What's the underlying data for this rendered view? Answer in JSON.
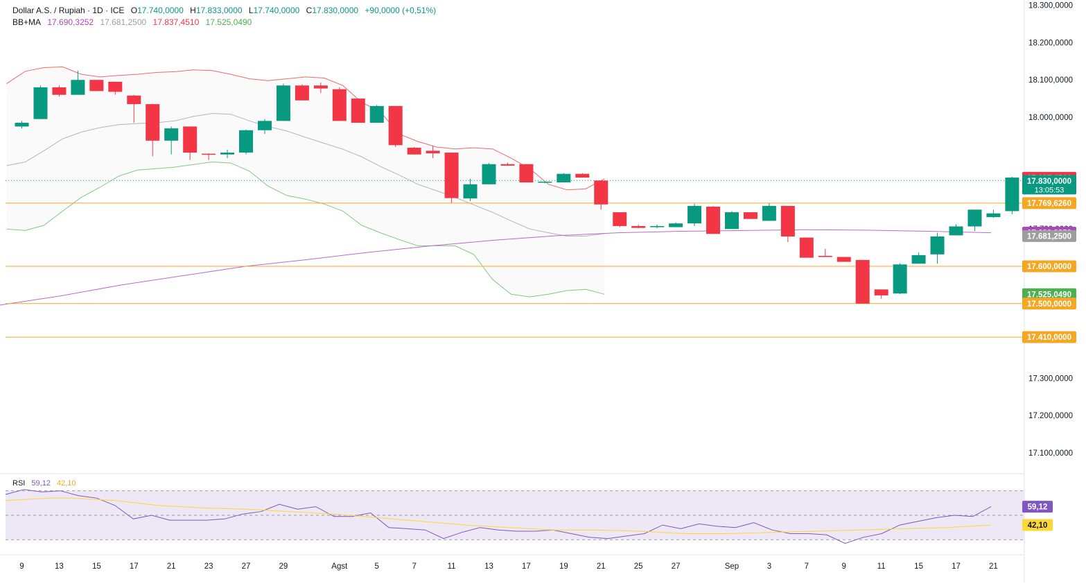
{
  "header": {
    "symbol": "Dollar A.S. / Rupiah · 1D · ICE",
    "o_label": "O",
    "o_value": "17.740,0000",
    "h_label": "H",
    "h_value": "17.833,0000",
    "l_label": "L",
    "l_value": "17.740,0000",
    "c_label": "C",
    "c_value": "17.830,0000",
    "change": "+90,0000 (+0,51%)"
  },
  "bb_legend": {
    "label": "BB+MA",
    "v1": "17.690,3252",
    "v2": "17.681,2500",
    "v3": "17.837,4510",
    "v4": "17.525,0490"
  },
  "rsi_legend": {
    "label": "RSI",
    "v1": "59,12",
    "v2": "42,10"
  },
  "colors": {
    "up": "#089981",
    "down": "#f23645",
    "bb_upper": "#f0696e",
    "bb_basis": "#b2b5be",
    "bb_lower": "#81c784",
    "ma": "#ba68c8",
    "hline": "#f5a623",
    "rsi": "#7e57c2",
    "rsi_ma": "#fdd835",
    "rsi_band": "#ede7f6"
  },
  "chart_data": {
    "type": "candlestick",
    "price_axis": {
      "ylim": [
        17055,
        18305
      ],
      "ticks": [
        17100000,
        17200000,
        17300000,
        17700000,
        18000000,
        18100000,
        18200000,
        18300000
      ],
      "tick_labels": [
        "17.100,0000",
        "17.200,0000",
        "17.300,0000",
        "17.700,0000",
        "18.000,0000",
        "18.100,0000",
        "18.200,0000",
        "18.300,0000"
      ]
    },
    "x_tick_labels": [
      {
        "i": 1,
        "label": "9"
      },
      {
        "i": 3,
        "label": "13"
      },
      {
        "i": 5,
        "label": "15"
      },
      {
        "i": 7,
        "label": "17"
      },
      {
        "i": 9,
        "label": "21"
      },
      {
        "i": 11,
        "label": "23"
      },
      {
        "i": 13,
        "label": "27"
      },
      {
        "i": 15,
        "label": "29"
      },
      {
        "i": 18,
        "label": "Agst"
      },
      {
        "i": 20,
        "label": "5"
      },
      {
        "i": 22,
        "label": "7"
      },
      {
        "i": 24,
        "label": "11"
      },
      {
        "i": 26,
        "label": "13"
      },
      {
        "i": 28,
        "label": "17"
      },
      {
        "i": 30,
        "label": "19"
      },
      {
        "i": 32,
        "label": "21"
      },
      {
        "i": 34,
        "label": "25"
      },
      {
        "i": 36,
        "label": "27"
      },
      {
        "i": 39,
        "label": "Sep"
      },
      {
        "i": 41,
        "label": "3"
      },
      {
        "i": 43,
        "label": "7"
      },
      {
        "i": 45,
        "label": "9"
      },
      {
        "i": 47,
        "label": "11"
      },
      {
        "i": 49,
        "label": "15"
      },
      {
        "i": 51,
        "label": "17"
      },
      {
        "i": 53,
        "label": "21"
      }
    ],
    "candles": [
      [
        17975,
        17985,
        17970,
        17990
      ],
      [
        17995,
        18080,
        17995,
        18085
      ],
      [
        18080,
        18060,
        18055,
        18085
      ],
      [
        18060,
        18100,
        18060,
        18125
      ],
      [
        18100,
        18070,
        18070,
        18100
      ],
      [
        18095,
        18068,
        18060,
        18095
      ],
      [
        18058,
        18035,
        17985,
        18060
      ],
      [
        18035,
        17937,
        17895,
        18035
      ],
      [
        17937,
        17970,
        17900,
        17975
      ],
      [
        17975,
        17905,
        17885,
        17975
      ],
      [
        17902,
        17900,
        17885,
        17903
      ],
      [
        17900,
        17905,
        17890,
        17913
      ],
      [
        17905,
        17965,
        17900,
        17967
      ],
      [
        17965,
        17990,
        17955,
        17995
      ],
      [
        17990,
        18085,
        17990,
        18090
      ],
      [
        18085,
        18045,
        18045,
        18088
      ],
      [
        18085,
        18077,
        18065,
        18093
      ],
      [
        18075,
        17990,
        17990,
        18080
      ],
      [
        18050,
        17985,
        17985,
        18050
      ],
      [
        17985,
        18030,
        17985,
        18033
      ],
      [
        18030,
        17925,
        17920,
        18030
      ],
      [
        17918,
        17900,
        17900,
        17920
      ],
      [
        17910,
        17903,
        17890,
        17923
      ],
      [
        17905,
        17783,
        17770,
        17905
      ],
      [
        17782,
        17820,
        17775,
        17835
      ],
      [
        17820,
        17874,
        17820,
        17877
      ],
      [
        17874,
        17870,
        17870,
        17878
      ],
      [
        17874,
        17825,
        17825,
        17874
      ],
      [
        17825,
        17827,
        17823,
        17828
      ],
      [
        17825,
        17848,
        17825,
        17850
      ],
      [
        17848,
        17838,
        17838,
        17850
      ],
      [
        17830,
        17766,
        17752,
        17830
      ],
      [
        17745,
        17708,
        17705,
        17745
      ],
      [
        17708,
        17703,
        17702,
        17712
      ],
      [
        17705,
        17708,
        17702,
        17712
      ],
      [
        17705,
        17715,
        17705,
        17718
      ],
      [
        17715,
        17762,
        17708,
        17768
      ],
      [
        17760,
        17687,
        17687,
        17762
      ],
      [
        17700,
        17745,
        17700,
        17748
      ],
      [
        17745,
        17727,
        17727,
        17745
      ],
      [
        17722,
        17762,
        17722,
        17770
      ],
      [
        17762,
        17680,
        17665,
        17762
      ],
      [
        17677,
        17623,
        17623,
        17677
      ],
      [
        17628,
        17625,
        17625,
        17647
      ],
      [
        17625,
        17612,
        17612,
        17625
      ],
      [
        17617,
        17500,
        17500,
        17617
      ],
      [
        17538,
        17522,
        17513,
        17538
      ],
      [
        17527,
        17605,
        17525,
        17608
      ],
      [
        17607,
        17630,
        17607,
        17637
      ],
      [
        17632,
        17680,
        17607,
        17690
      ],
      [
        17683,
        17707,
        17683,
        17713
      ],
      [
        17707,
        17752,
        17695,
        17752
      ],
      [
        17732,
        17742,
        17730,
        17752
      ],
      [
        17748,
        17838,
        17740,
        17840
      ]
    ],
    "bb_upper": [
      [
        0,
        18090
      ],
      [
        2,
        18123
      ],
      [
        4,
        18133
      ],
      [
        6,
        18135
      ],
      [
        8,
        18115
      ],
      [
        10,
        18108
      ],
      [
        12,
        18112
      ],
      [
        14,
        18115
      ],
      [
        16,
        18120
      ],
      [
        18,
        18122
      ],
      [
        20,
        18127
      ],
      [
        22,
        18125
      ],
      [
        24,
        18115
      ],
      [
        26,
        18103
      ],
      [
        28,
        18098
      ],
      [
        30,
        18103
      ],
      [
        32,
        18108
      ],
      [
        34,
        18105
      ],
      [
        36,
        18085
      ],
      [
        38,
        18040
      ],
      [
        40,
        18015
      ],
      [
        42,
        17955
      ],
      [
        44,
        17935
      ],
      [
        46,
        17920
      ],
      [
        48,
        17915
      ],
      [
        50,
        17918
      ],
      [
        52,
        17915
      ],
      [
        54,
        17890
      ],
      [
        56,
        17862
      ],
      [
        58,
        17820
      ],
      [
        60,
        17805
      ],
      [
        62,
        17808
      ],
      [
        64,
        17835
      ]
    ],
    "bb_basis": [
      [
        0,
        17870
      ],
      [
        2,
        17880
      ],
      [
        4,
        17910
      ],
      [
        6,
        17942
      ],
      [
        8,
        17960
      ],
      [
        10,
        17972
      ],
      [
        12,
        17980
      ],
      [
        14,
        17983
      ],
      [
        16,
        17985
      ],
      [
        18,
        17990
      ],
      [
        20,
        18002
      ],
      [
        22,
        18010
      ],
      [
        24,
        18008
      ],
      [
        26,
        17990
      ],
      [
        28,
        17975
      ],
      [
        30,
        17963
      ],
      [
        32,
        17946
      ],
      [
        34,
        17930
      ],
      [
        36,
        17914
      ],
      [
        38,
        17894
      ],
      [
        40,
        17868
      ],
      [
        42,
        17845
      ],
      [
        44,
        17820
      ],
      [
        46,
        17803
      ],
      [
        48,
        17785
      ],
      [
        50,
        17765
      ],
      [
        52,
        17745
      ],
      [
        54,
        17722
      ],
      [
        56,
        17700
      ],
      [
        58,
        17690
      ],
      [
        60,
        17681
      ],
      [
        62,
        17681
      ],
      [
        64,
        17688
      ]
    ],
    "bb_lower": [
      [
        0,
        17700
      ],
      [
        2,
        17696
      ],
      [
        4,
        17710
      ],
      [
        6,
        17748
      ],
      [
        8,
        17785
      ],
      [
        10,
        17812
      ],
      [
        12,
        17842
      ],
      [
        14,
        17858
      ],
      [
        16,
        17862
      ],
      [
        18,
        17866
      ],
      [
        20,
        17873
      ],
      [
        22,
        17880
      ],
      [
        24,
        17877
      ],
      [
        26,
        17855
      ],
      [
        28,
        17815
      ],
      [
        30,
        17790
      ],
      [
        32,
        17780
      ],
      [
        34,
        17767
      ],
      [
        36,
        17748
      ],
      [
        38,
        17710
      ],
      [
        40,
        17690
      ],
      [
        42,
        17672
      ],
      [
        44,
        17655
      ],
      [
        46,
        17655
      ],
      [
        48,
        17655
      ],
      [
        50,
        17632
      ],
      [
        52,
        17565
      ],
      [
        54,
        17525
      ],
      [
        56,
        17518
      ],
      [
        58,
        17525
      ],
      [
        60,
        17535
      ],
      [
        62,
        17538
      ],
      [
        64,
        17525
      ]
    ],
    "ma": [
      [
        0,
        17495
      ],
      [
        4,
        17520
      ],
      [
        8,
        17550
      ],
      [
        12,
        17575
      ],
      [
        16,
        17600
      ],
      [
        20,
        17618
      ],
      [
        24,
        17638
      ],
      [
        28,
        17655
      ],
      [
        32,
        17670
      ],
      [
        36,
        17682
      ],
      [
        40,
        17690
      ],
      [
        44,
        17694
      ],
      [
        48,
        17696
      ],
      [
        52,
        17698
      ],
      [
        56,
        17697
      ],
      [
        60,
        17694
      ],
      [
        64,
        17690
      ]
    ],
    "hlines": [
      {
        "y": 17769.626,
        "label": "17.769,6260"
      },
      {
        "y": 17600,
        "label": "17.600,0000"
      },
      {
        "y": 17500,
        "label": "17.500,0000"
      },
      {
        "y": 17410,
        "label": "17.410,0000"
      }
    ],
    "price_tags": [
      {
        "y": 17837.451,
        "label": "17.837,4510",
        "color": "#f23645"
      },
      {
        "y": 17830,
        "label": "17.830,0000",
        "sub": "13:05:53",
        "color": "#089981"
      },
      {
        "y": 17769.626,
        "label": "17.769,6260",
        "color": "#f5a623"
      },
      {
        "y": 17690.3252,
        "label": "17.690,3252",
        "color": "#ab47bc"
      },
      {
        "y": 17681.25,
        "label": "17.681,2500",
        "color": "#9e9e9e"
      },
      {
        "y": 17600,
        "label": "17.600,0000",
        "color": "#f5a623"
      },
      {
        "y": 17525.049,
        "label": "17.525,0490",
        "color": "#4caf50"
      },
      {
        "y": 17500,
        "label": "17.500,0000",
        "color": "#f5a623"
      },
      {
        "y": 17410,
        "label": "17.410,0000",
        "color": "#f5a623"
      }
    ],
    "rsi": {
      "ylim": [
        20,
        80
      ],
      "upper": 70,
      "middle": 50,
      "lower": 30,
      "rsi_values": [
        67,
        71,
        69,
        70,
        66,
        64,
        58,
        47,
        50,
        46,
        46,
        46,
        47,
        51,
        53,
        59,
        55,
        57,
        49,
        49,
        52,
        40,
        39,
        38,
        31,
        36,
        40,
        38,
        37,
        37,
        38,
        35,
        32,
        31,
        33,
        35,
        42,
        39,
        43,
        41,
        40,
        44,
        38,
        35,
        35,
        34,
        27,
        32,
        35,
        42,
        45,
        48,
        50,
        49,
        57
      ],
      "rsi_ma_values": [
        [
          0,
          62
        ],
        [
          4,
          64
        ],
        [
          6,
          64
        ],
        [
          10,
          62
        ],
        [
          14,
          58
        ],
        [
          18,
          56
        ],
        [
          22,
          55
        ],
        [
          26,
          53
        ],
        [
          30,
          51
        ],
        [
          34,
          48
        ],
        [
          38,
          45
        ],
        [
          42,
          42
        ],
        [
          46,
          40
        ],
        [
          50,
          38
        ],
        [
          54,
          38
        ],
        [
          58,
          37
        ],
        [
          62,
          35
        ],
        [
          66,
          35
        ],
        [
          70,
          36
        ],
        [
          74,
          37
        ],
        [
          78,
          38
        ],
        [
          82,
          39
        ],
        [
          86,
          40
        ],
        [
          90,
          42
        ]
      ],
      "tag_rsi": "59,12",
      "tag_ma": "42,10"
    }
  }
}
